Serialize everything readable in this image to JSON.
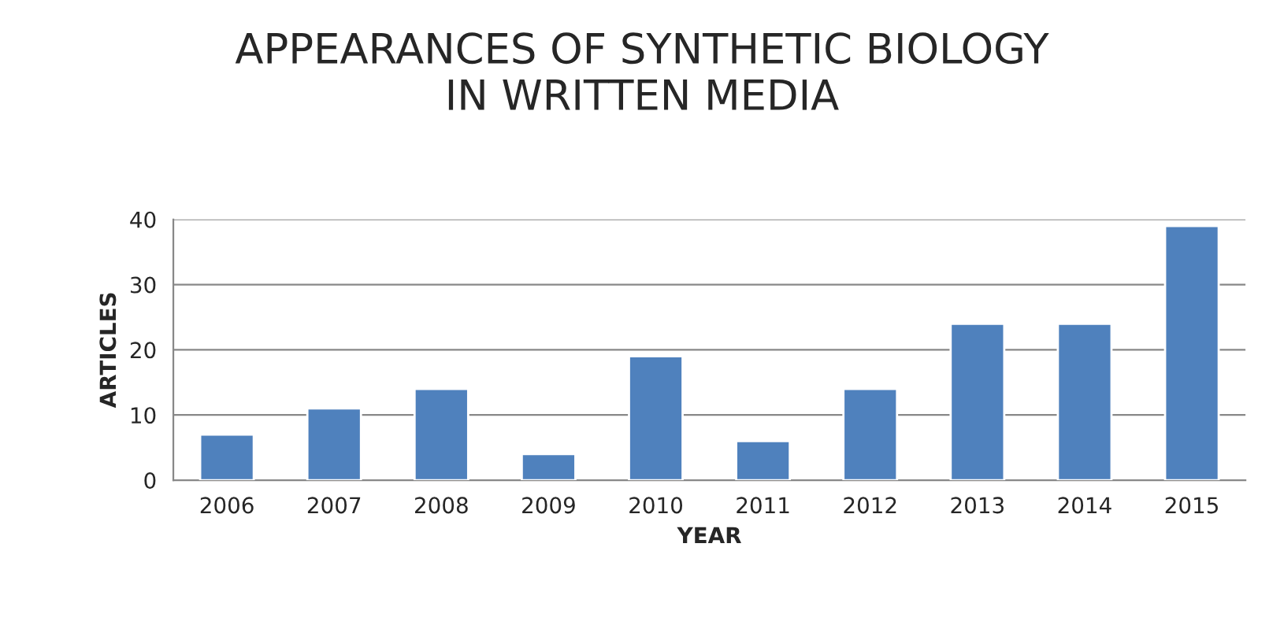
{
  "chart_data": {
    "type": "bar",
    "title": "APPEARANCES OF SYNTHETIC BIOLOGY\nIN WRITTEN MEDIA",
    "xlabel": "YEAR",
    "ylabel": "ARTICLES",
    "categories": [
      "2006",
      "2007",
      "2008",
      "2009",
      "2010",
      "2011",
      "2012",
      "2013",
      "2014",
      "2015"
    ],
    "values": [
      7,
      11,
      14,
      4,
      19,
      6,
      14,
      24,
      24,
      39
    ],
    "color": "#4f81bd",
    "ylim": [
      0,
      40
    ],
    "yticks": [
      0,
      10,
      20,
      30,
      40
    ],
    "grid": "y",
    "legend": false
  }
}
